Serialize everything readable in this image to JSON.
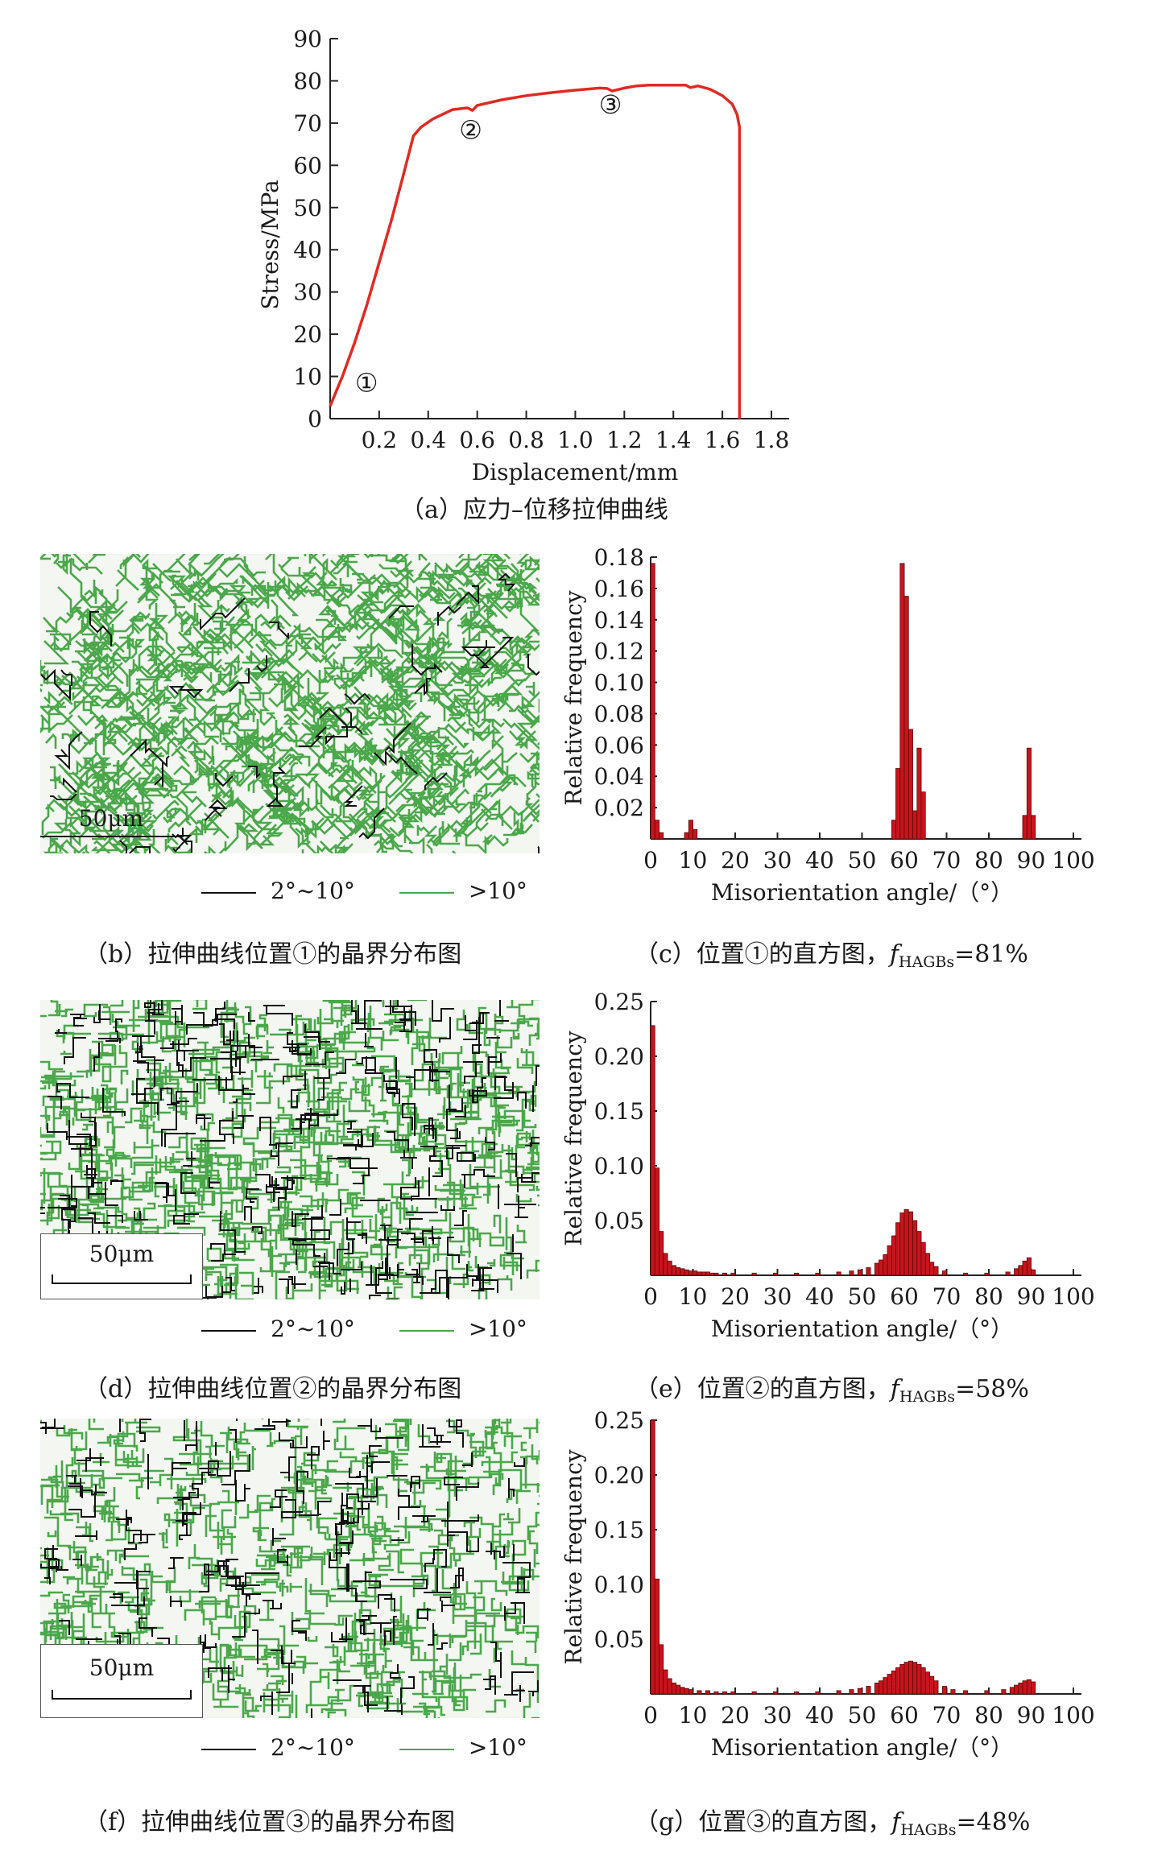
{
  "colors": {
    "curve": "#e02a22",
    "bar_fill": "#c8141c",
    "bar_edge": "#5a0a0a",
    "hagb": "#4aa84a",
    "lagb": "#111111"
  },
  "panel_a": {
    "caption": "（a）应力–位移拉伸曲线",
    "xlabel": "Displacement/mm",
    "ylabel": "Stress/MPa",
    "xticks": [
      "0.2",
      "0.4",
      "0.6",
      "0.8",
      "1.0",
      "1.2",
      "1.4",
      "1.6",
      "1.8"
    ],
    "yticks": [
      "0",
      "10",
      "20",
      "30",
      "40",
      "50",
      "60",
      "70",
      "80",
      "90"
    ],
    "markers": [
      {
        "label": "①"
      },
      {
        "label": "②"
      },
      {
        "label": "③"
      }
    ]
  },
  "legend": {
    "low_label": "2°~10°",
    "high_label": ">10°"
  },
  "scale_bar": "50μm",
  "panel_b": {
    "caption": "（b）拉伸曲线位置①的晶界分布图"
  },
  "panel_d": {
    "caption": "（d）拉伸曲线位置②的晶界分布图"
  },
  "panel_f": {
    "caption": "（f）拉伸曲线位置③的晶界分布图"
  },
  "panel_c": {
    "caption_pre": "（c）位置①的直方图，",
    "f_symbol": "f",
    "f_sub": "HAGBs",
    "f_value": "=81%"
  },
  "panel_e": {
    "caption_pre": "（e）位置②的直方图，",
    "f_symbol": "f",
    "f_sub": "HAGBs",
    "f_value": "=58%"
  },
  "panel_g": {
    "caption_pre": "（g）位置③的直方图，",
    "f_symbol": "f",
    "f_sub": "HAGBs",
    "f_value": "=48%"
  },
  "hist_axes": {
    "xlabel": "Misorientation angle/（°）",
    "ylabel": "Relative frequency",
    "xticks": [
      "0",
      "10",
      "20",
      "30",
      "40",
      "50",
      "60",
      "70",
      "80",
      "90",
      "100"
    ]
  },
  "chart_data": [
    {
      "type": "line",
      "xlabel": "Displacement/mm",
      "ylabel": "Stress/MPa",
      "xlim": [
        0,
        1.8
      ],
      "ylim": [
        0,
        90
      ],
      "x": [
        0.0,
        0.05,
        0.1,
        0.15,
        0.2,
        0.25,
        0.3,
        0.34,
        0.37,
        0.42,
        0.5,
        0.56,
        0.58,
        0.6,
        0.7,
        0.8,
        0.9,
        1.0,
        1.1,
        1.13,
        1.15,
        1.2,
        1.25,
        1.3,
        1.35,
        1.4,
        1.45,
        1.47,
        1.5,
        1.55,
        1.6,
        1.64,
        1.66,
        1.67,
        1.67
      ],
      "y": [
        3,
        10,
        18,
        27,
        37,
        47,
        58,
        67,
        69,
        71,
        73.2,
        73.6,
        73.0,
        74.2,
        75.5,
        76.5,
        77.2,
        77.8,
        78.3,
        78.2,
        77.6,
        78.3,
        78.8,
        79.0,
        79.0,
        79.0,
        79.0,
        78.4,
        78.8,
        78.0,
        76.5,
        74.5,
        72,
        69,
        0
      ],
      "annotations": [
        {
          "label": "①",
          "x": 0.05,
          "y": 3
        },
        {
          "label": "②",
          "x": 0.58,
          "y": 73.5
        },
        {
          "label": "③",
          "x": 1.15,
          "y": 78
        }
      ]
    },
    {
      "type": "bar",
      "xlabel": "Misorientation angle/（°）",
      "ylabel": "Relative frequency",
      "xlim": [
        0,
        100
      ],
      "ylim": [
        0,
        0.18
      ],
      "yticks": [
        "0.02",
        "0.04",
        "0.06",
        "0.08",
        "0.10",
        "0.12",
        "0.14",
        "0.16",
        "0.18"
      ],
      "bin_width": 1,
      "x": [
        1,
        2,
        3,
        9,
        10,
        11,
        58,
        59,
        60,
        61,
        62,
        63,
        64,
        65,
        89,
        90,
        91
      ],
      "values": [
        0.176,
        0.012,
        0.004,
        0.004,
        0.012,
        0.006,
        0.012,
        0.045,
        0.176,
        0.155,
        0.07,
        0.018,
        0.058,
        0.03,
        0.015,
        0.058,
        0.015
      ]
    },
    {
      "type": "bar",
      "xlabel": "Misorientation angle/（°）",
      "ylabel": "Relative frequency",
      "xlim": [
        0,
        100
      ],
      "ylim": [
        0,
        0.25
      ],
      "yticks": [
        "0.05",
        "0.10",
        "0.15",
        "0.20",
        "0.25"
      ],
      "bin_width": 1,
      "x": [
        1,
        2,
        3,
        4,
        5,
        6,
        7,
        8,
        9,
        10,
        11,
        12,
        13,
        14,
        15,
        16,
        18,
        20,
        25,
        30,
        35,
        40,
        45,
        48,
        50,
        52,
        54,
        55,
        56,
        57,
        58,
        59,
        60,
        61,
        62,
        63,
        64,
        65,
        66,
        67,
        68,
        70,
        75,
        80,
        85,
        87,
        88,
        89,
        90,
        91
      ],
      "values": [
        0.228,
        0.098,
        0.04,
        0.02,
        0.013,
        0.009,
        0.007,
        0.006,
        0.005,
        0.004,
        0.004,
        0.003,
        0.003,
        0.003,
        0.002,
        0.002,
        0.002,
        0.002,
        0.002,
        0.002,
        0.002,
        0.002,
        0.003,
        0.004,
        0.005,
        0.007,
        0.011,
        0.014,
        0.019,
        0.027,
        0.036,
        0.048,
        0.057,
        0.06,
        0.058,
        0.05,
        0.04,
        0.03,
        0.02,
        0.012,
        0.008,
        0.004,
        0.002,
        0.002,
        0.003,
        0.006,
        0.009,
        0.013,
        0.016,
        0.005
      ]
    },
    {
      "type": "bar",
      "xlabel": "Misorientation angle/（°）",
      "ylabel": "Relative frequency",
      "xlim": [
        0,
        100
      ],
      "ylim": [
        0,
        0.25
      ],
      "yticks": [
        "0.05",
        "0.10",
        "0.15",
        "0.20",
        "0.25"
      ],
      "bin_width": 1,
      "x": [
        1,
        2,
        3,
        4,
        5,
        6,
        7,
        8,
        9,
        10,
        12,
        14,
        16,
        18,
        20,
        25,
        30,
        35,
        40,
        45,
        48,
        50,
        52,
        54,
        55,
        56,
        57,
        58,
        59,
        60,
        61,
        62,
        63,
        64,
        65,
        66,
        67,
        68,
        70,
        72,
        75,
        80,
        84,
        86,
        87,
        88,
        89,
        90,
        91
      ],
      "values": [
        0.25,
        0.105,
        0.045,
        0.022,
        0.014,
        0.01,
        0.008,
        0.006,
        0.005,
        0.004,
        0.003,
        0.003,
        0.002,
        0.002,
        0.002,
        0.002,
        0.002,
        0.002,
        0.002,
        0.003,
        0.004,
        0.005,
        0.007,
        0.01,
        0.012,
        0.015,
        0.018,
        0.021,
        0.024,
        0.027,
        0.029,
        0.03,
        0.029,
        0.027,
        0.024,
        0.02,
        0.016,
        0.012,
        0.007,
        0.004,
        0.003,
        0.003,
        0.004,
        0.006,
        0.008,
        0.01,
        0.012,
        0.013,
        0.011
      ]
    }
  ]
}
